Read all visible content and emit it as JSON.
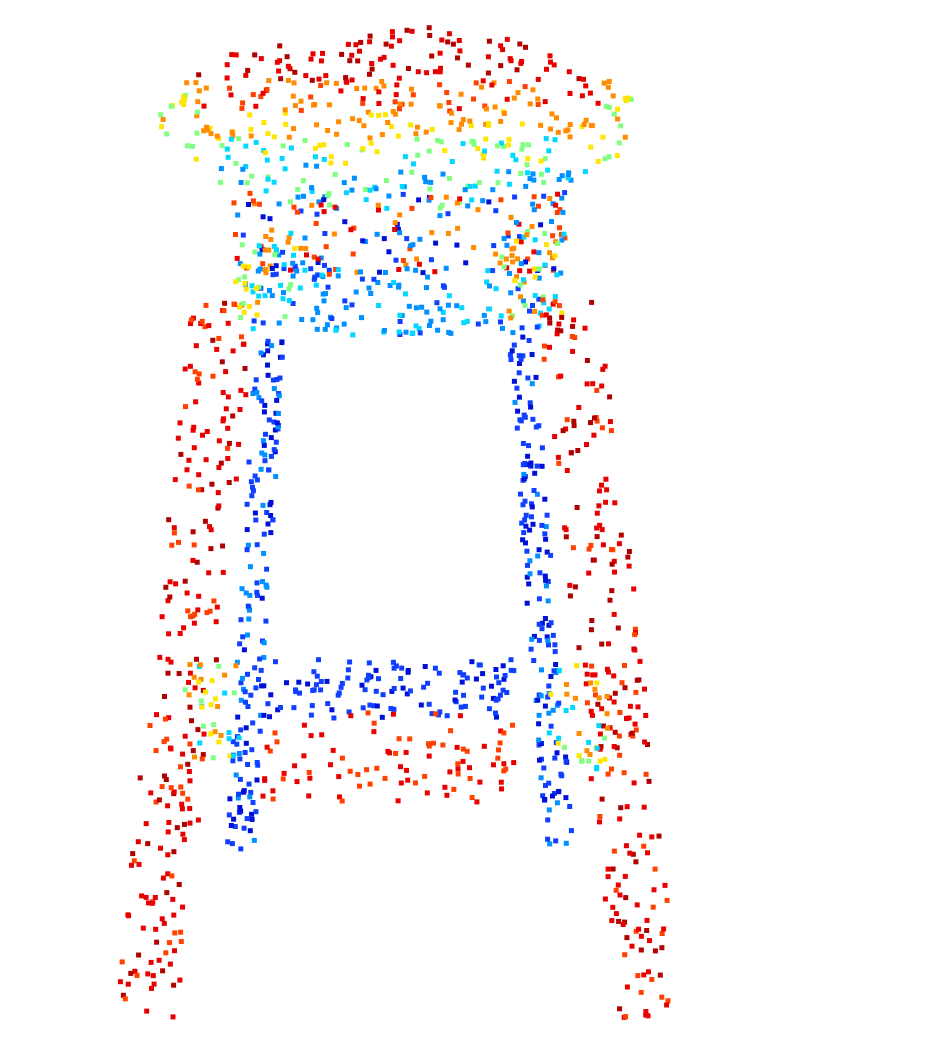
{
  "scene": {
    "subject": "point-cloud-stool",
    "colormap": [
      "#00008f",
      "#0000ff",
      "#0080ff",
      "#00ffff",
      "#80ff80",
      "#ffff00",
      "#ff8000",
      "#ff0000",
      "#800000"
    ],
    "palette": {
      "dark-red": "#b00000",
      "red": "#e80000",
      "orange-red": "#ff4000",
      "orange": "#ff8c00",
      "yellow": "#ffe600",
      "green": "#80ff80",
      "cyan": "#00d8ff",
      "light-blue": "#0090ff",
      "blue": "#1040ff",
      "navy": "#0010d8"
    },
    "background": "#ffffff"
  }
}
